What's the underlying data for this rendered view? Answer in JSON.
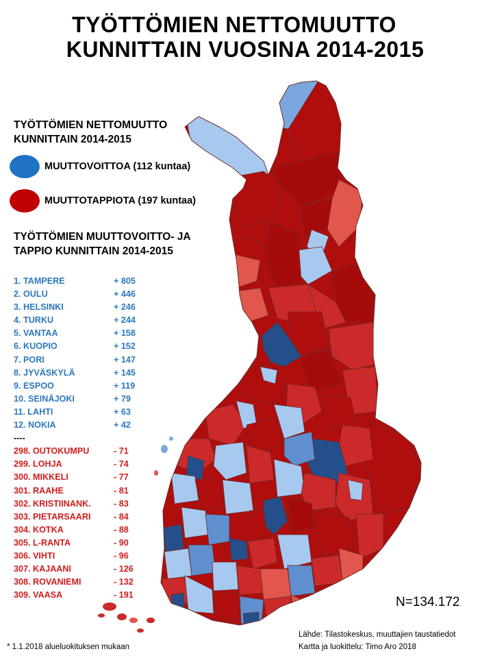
{
  "title": {
    "line1": "TYÖTTÖMIEN NETTOMUUTTO",
    "line2": "KUNNITTAIN VUOSINA 2014-2015"
  },
  "legend": {
    "heading_line1": "TYÖTTÖMIEN NETTOMUUTTO",
    "heading_line2": "KUNNITTAIN 2014-2015",
    "items": [
      {
        "label": "MUUTTOVOITTOA (112 kuntaa)",
        "color": "#1f72c4"
      },
      {
        "label": "MUUTTOTAPPIOTA (197 kuntaa)",
        "color": "#c00000"
      }
    ]
  },
  "ranking": {
    "heading_line1": "TYÖTTÖMIEN MUUTTOVOITTO- JA",
    "heading_line2": "TAPPIO KUNNITTAIN 2014-2015",
    "gains": [
      {
        "name": "1.   TAMPERE",
        "value": "+ 805"
      },
      {
        "name": "2.   OULU",
        "value": "+ 446"
      },
      {
        "name": "3.   HELSINKI",
        "value": "+ 246"
      },
      {
        "name": "4.   TURKU",
        "value": "+ 244"
      },
      {
        "name": "5.   VANTAA",
        "value": "+ 158"
      },
      {
        "name": "6.   KUOPIO",
        "value": "+ 152"
      },
      {
        "name": "7.   PORI",
        "value": "+ 147"
      },
      {
        "name": "8.   JYVÄSKYLÄ",
        "value": "+ 145"
      },
      {
        "name": "9.   ESPOO",
        "value": "+ 119"
      },
      {
        "name": "10. SEINÄJOKI",
        "value": "+  79"
      },
      {
        "name": "11. LAHTI",
        "value": "+  63"
      },
      {
        "name": "12. NOKIA",
        "value": "+  42"
      }
    ],
    "separator": "----",
    "losses": [
      {
        "name": "298. OUTOKUMPU",
        "value": "-  71"
      },
      {
        "name": "299. LOHJA",
        "value": "-  74"
      },
      {
        "name": "300. MIKKELI",
        "value": "-  77"
      },
      {
        "name": "301. RAAHE",
        "value": "-  81"
      },
      {
        "name": "302. KRISTIINANK.",
        "value": "-  83"
      },
      {
        "name": "303. PIETARSAARI",
        "value": "-  84"
      },
      {
        "name": "304. KOTKA",
        "value": "-  88"
      },
      {
        "name": "305. L-RANTA",
        "value": "-  90"
      },
      {
        "name": "306. VIHTI",
        "value": "-  96"
      },
      {
        "name": "307. KAJAANI",
        "value": "- 126"
      },
      {
        "name": "308. ROVANIEMI",
        "value": "- 132"
      },
      {
        "name": "309. VAASA",
        "value": "- 191"
      }
    ]
  },
  "n_total": "N=134.172",
  "source": {
    "line1": "Lähde: Tilastokeskus, muuttajien taustatiedot",
    "line2": "Kartta ja luokittelu: Timo Aro 2018"
  },
  "footnote": "* 1.1.2018 alueluokituksen mukaan",
  "map_colors": {
    "dark_red": "#b00d0d",
    "red": "#cc2a2a",
    "light_red": "#e2574c",
    "dark_blue": "#244f8a",
    "blue": "#5f8fcf",
    "light_blue": "#a7c9f0",
    "border": "#6d2a2a"
  }
}
